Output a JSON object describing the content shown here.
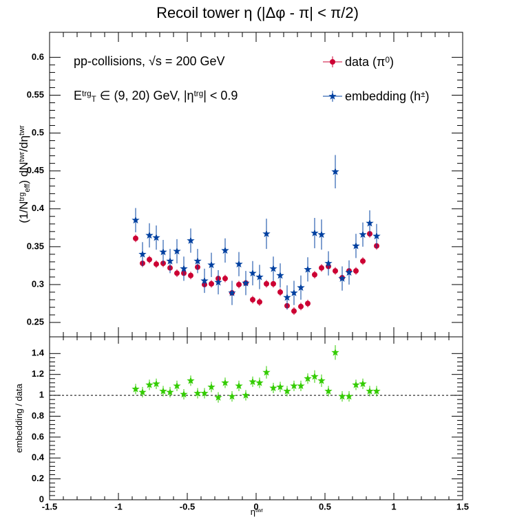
{
  "chart_data": [
    {
      "type": "scatter",
      "title": "Recoil tower η (|Δφ - π| < π/2)",
      "annotations": [
        [
          {
            "text": "pp-collisions, "
          },
          {
            "text": "√s = 200 GeV"
          }
        ],
        [
          {
            "text": "E"
          },
          {
            "text": "trg",
            "pos": "sup"
          },
          {
            "text": "T",
            "pos": "sub"
          },
          {
            "text": " ∈ (9, 20) GeV, |η"
          },
          {
            "text": "trg",
            "pos": "sup"
          },
          {
            "text": "| < 0.9"
          }
        ]
      ],
      "y_label": [
        {
          "text": "(1/N"
        },
        {
          "text": "trg",
          "pos": "sup"
        },
        {
          "text": "eff",
          "pos": "sub"
        },
        {
          "text": ") dN"
        },
        {
          "text": "twr",
          "pos": "sup"
        },
        {
          "text": "/dη"
        },
        {
          "text": "twr",
          "pos": "sup"
        }
      ],
      "xlim": [
        -1.5,
        1.5
      ],
      "xticks": [
        -1.5,
        -1,
        -0.5,
        0,
        0.5,
        1,
        1.5
      ],
      "ylim": [
        0.231,
        0.633
      ],
      "yticks": [
        0.25,
        0.3,
        0.35,
        0.4,
        0.45,
        0.5,
        0.55,
        0.6
      ],
      "x": [
        -0.875,
        -0.825,
        -0.775,
        -0.725,
        -0.675,
        -0.625,
        -0.575,
        -0.525,
        -0.475,
        -0.425,
        -0.375,
        -0.325,
        -0.275,
        -0.225,
        -0.175,
        -0.125,
        -0.075,
        -0.025,
        0.025,
        0.075,
        0.125,
        0.175,
        0.225,
        0.275,
        0.325,
        0.375,
        0.425,
        0.475,
        0.525,
        0.575,
        0.625,
        0.675,
        0.725,
        0.775,
        0.825,
        0.875
      ],
      "series": [
        {
          "name": [
            {
              "text": "data (π"
            },
            {
              "text": "0",
              "pos": "sup"
            },
            {
              "text": ")"
            }
          ],
          "color": "#cc0033",
          "marker": "circle",
          "values": [
            0.361,
            0.328,
            0.333,
            0.327,
            0.328,
            0.322,
            0.315,
            0.315,
            0.312,
            0.323,
            0.3,
            0.301,
            0.308,
            0.308,
            0.289,
            0.3,
            0.302,
            0.28,
            0.277,
            0.301,
            0.301,
            0.29,
            0.272,
            0.265,
            0.271,
            0.275,
            0.313,
            0.322,
            0.324,
            0.318,
            0.309,
            0.318,
            0.318,
            0.331,
            0.367,
            0.351
          ],
          "errors": [
            0.005,
            0.005,
            0.005,
            0.005,
            0.005,
            0.005,
            0.005,
            0.005,
            0.005,
            0.005,
            0.005,
            0.005,
            0.005,
            0.005,
            0.005,
            0.005,
            0.005,
            0.005,
            0.005,
            0.005,
            0.005,
            0.005,
            0.005,
            0.005,
            0.005,
            0.005,
            0.005,
            0.005,
            0.005,
            0.005,
            0.005,
            0.005,
            0.005,
            0.005,
            0.005,
            0.005
          ]
        },
        {
          "name": [
            {
              "text": "embedding (h"
            },
            {
              "text": "±",
              "pos": "sup"
            },
            {
              "text": ")"
            }
          ],
          "color": "#0040a0",
          "marker": "star",
          "values": [
            0.385,
            0.34,
            0.365,
            0.362,
            0.343,
            0.331,
            0.344,
            0.321,
            0.358,
            0.331,
            0.305,
            0.326,
            0.303,
            0.345,
            0.289,
            0.327,
            0.302,
            0.315,
            0.31,
            0.367,
            0.321,
            0.312,
            0.283,
            0.289,
            0.296,
            0.32,
            0.368,
            0.366,
            0.328,
            0.449,
            0.308,
            0.316,
            0.351,
            0.366,
            0.381,
            0.364
          ],
          "errors": [
            0.016,
            0.016,
            0.016,
            0.016,
            0.016,
            0.016,
            0.016,
            0.016,
            0.016,
            0.016,
            0.016,
            0.016,
            0.016,
            0.016,
            0.016,
            0.016,
            0.016,
            0.016,
            0.016,
            0.02,
            0.016,
            0.016,
            0.016,
            0.016,
            0.016,
            0.016,
            0.02,
            0.02,
            0.016,
            0.022,
            0.016,
            0.016,
            0.016,
            0.016,
            0.017,
            0.016
          ]
        }
      ]
    },
    {
      "type": "scatter",
      "y_label": [
        {
          "text": "embedding / data"
        }
      ],
      "x_label": [
        {
          "text": "η"
        },
        {
          "text": "twr",
          "pos": "sup"
        }
      ],
      "xlim": [
        -1.5,
        1.5
      ],
      "xticks": [
        -1.5,
        -1,
        -0.5,
        0,
        0.5,
        1,
        1.5
      ],
      "ylim": [
        0,
        1.56
      ],
      "yticks": [
        0,
        0.2,
        0.4,
        0.6,
        0.8,
        1,
        1.2,
        1.4
      ],
      "reference_line": 1,
      "x": [
        -0.875,
        -0.825,
        -0.775,
        -0.725,
        -0.675,
        -0.625,
        -0.575,
        -0.525,
        -0.475,
        -0.425,
        -0.375,
        -0.325,
        -0.275,
        -0.225,
        -0.175,
        -0.125,
        -0.075,
        -0.025,
        0.025,
        0.075,
        0.125,
        0.175,
        0.225,
        0.275,
        0.325,
        0.375,
        0.425,
        0.475,
        0.525,
        0.575,
        0.625,
        0.675,
        0.725,
        0.775,
        0.825,
        0.875
      ],
      "series": [
        {
          "color": "#33cc00",
          "marker": "star",
          "values": [
            1.06,
            1.03,
            1.1,
            1.11,
            1.04,
            1.03,
            1.09,
            1.01,
            1.14,
            1.02,
            1.02,
            1.08,
            0.98,
            1.12,
            0.99,
            1.09,
            1.0,
            1.13,
            1.12,
            1.22,
            1.07,
            1.08,
            1.04,
            1.09,
            1.09,
            1.16,
            1.18,
            1.14,
            1.04,
            1.41,
            0.99,
            0.99,
            1.1,
            1.11,
            1.04,
            1.04
          ],
          "errors": [
            0.05,
            0.05,
            0.05,
            0.05,
            0.05,
            0.05,
            0.05,
            0.05,
            0.05,
            0.05,
            0.05,
            0.05,
            0.05,
            0.05,
            0.05,
            0.05,
            0.05,
            0.05,
            0.05,
            0.06,
            0.05,
            0.05,
            0.05,
            0.05,
            0.05,
            0.05,
            0.06,
            0.06,
            0.05,
            0.07,
            0.05,
            0.05,
            0.05,
            0.05,
            0.05,
            0.05
          ]
        }
      ]
    }
  ]
}
